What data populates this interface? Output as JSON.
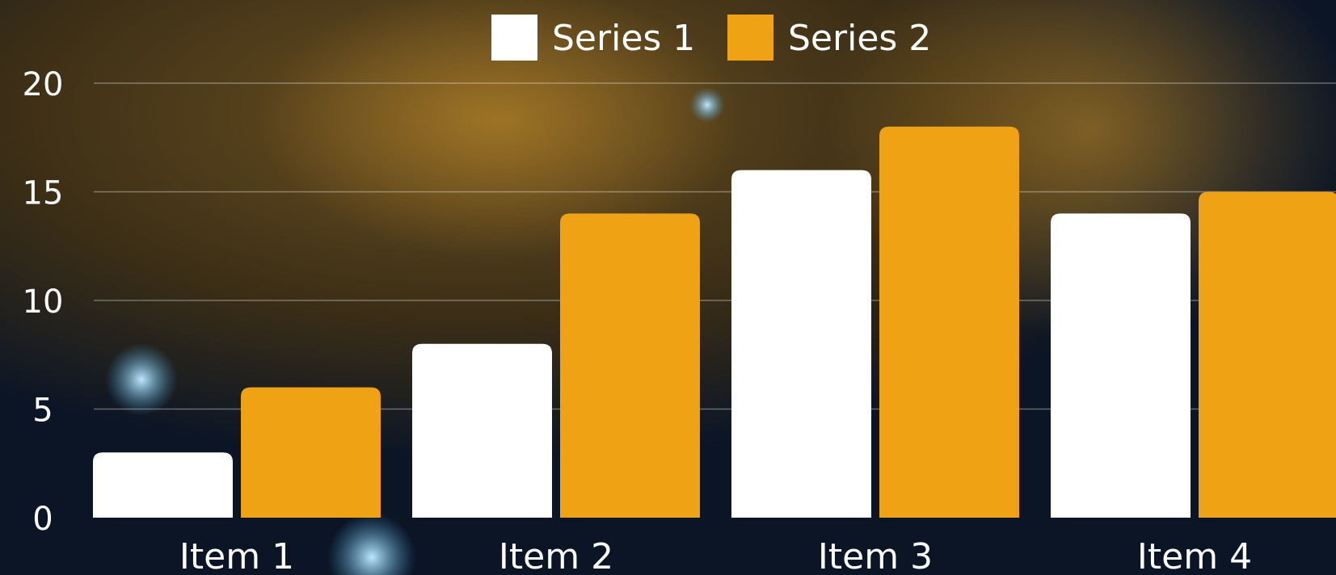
{
  "chart_data": {
    "type": "bar",
    "categories": [
      "Item 1",
      "Item 2",
      "Item 3",
      "Item 4"
    ],
    "series": [
      {
        "name": "Series 1",
        "color": "#ffffff",
        "values": [
          3,
          8,
          16,
          14
        ]
      },
      {
        "name": "Series 2",
        "color": "#efa314",
        "values": [
          6,
          14,
          18,
          15
        ]
      }
    ],
    "ylim": [
      0,
      20
    ],
    "yticks": [
      0,
      5,
      10,
      15,
      20
    ],
    "grid": true,
    "legend": "top"
  }
}
